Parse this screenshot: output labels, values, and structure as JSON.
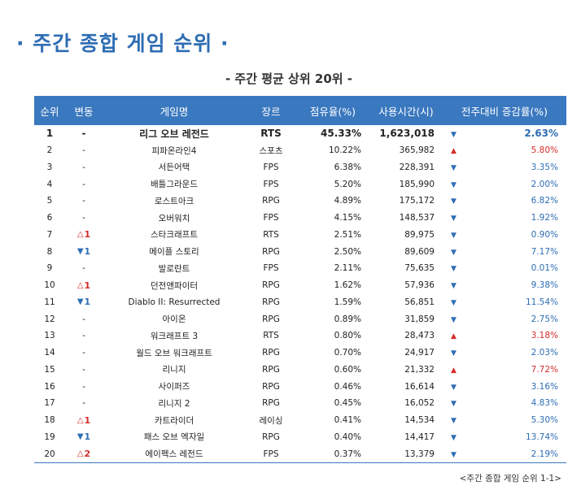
{
  "title": "· 주간 종합 게임 순위 ·",
  "subtitle": "- 주간 평균 상위 20위 -",
  "headers": [
    "순위",
    "변동",
    "게임명",
    "장르",
    "점유율(%)",
    "사용시간(시)",
    "전주대비 증감률(%)"
  ],
  "footnote": "<주간 종합 게임 순위 1-1>",
  "rows": [
    {
      "rank": "1",
      "move": "-",
      "move_dir": "none",
      "name": "리그 오브 레전드",
      "genre": "RTS",
      "share": "45.33%",
      "hours": "1,623,018",
      "trend": "down",
      "change": "2.63%"
    },
    {
      "rank": "2",
      "move": "-",
      "move_dir": "none",
      "name": "피파온라인4",
      "genre": "스포츠",
      "share": "10.22%",
      "hours": "365,982",
      "trend": "up",
      "change": "5.80%"
    },
    {
      "rank": "3",
      "move": "-",
      "move_dir": "none",
      "name": "서든어택",
      "genre": "FPS",
      "share": "6.38%",
      "hours": "228,391",
      "trend": "down",
      "change": "3.35%"
    },
    {
      "rank": "4",
      "move": "-",
      "move_dir": "none",
      "name": "배틀그라운드",
      "genre": "FPS",
      "share": "5.20%",
      "hours": "185,990",
      "trend": "down",
      "change": "2.00%"
    },
    {
      "rank": "5",
      "move": "-",
      "move_dir": "none",
      "name": "로스트아크",
      "genre": "RPG",
      "share": "4.89%",
      "hours": "175,172",
      "trend": "down",
      "change": "6.82%"
    },
    {
      "rank": "6",
      "move": "-",
      "move_dir": "none",
      "name": "오버워치",
      "genre": "FPS",
      "share": "4.15%",
      "hours": "148,537",
      "trend": "down",
      "change": "1.92%"
    },
    {
      "rank": "7",
      "move": "1",
      "move_dir": "up",
      "name": "스타크래프트",
      "genre": "RTS",
      "share": "2.51%",
      "hours": "89,975",
      "trend": "down",
      "change": "0.90%"
    },
    {
      "rank": "8",
      "move": "1",
      "move_dir": "down",
      "name": "메이플 스토리",
      "genre": "RPG",
      "share": "2.50%",
      "hours": "89,609",
      "trend": "down",
      "change": "7.17%"
    },
    {
      "rank": "9",
      "move": "-",
      "move_dir": "none",
      "name": "발로란트",
      "genre": "FPS",
      "share": "2.11%",
      "hours": "75,635",
      "trend": "down",
      "change": "0.01%"
    },
    {
      "rank": "10",
      "move": "1",
      "move_dir": "up",
      "name": "던전앤파이터",
      "genre": "RPG",
      "share": "1.62%",
      "hours": "57,936",
      "trend": "down",
      "change": "9.38%"
    },
    {
      "rank": "11",
      "move": "1",
      "move_dir": "down",
      "name": "Diablo II: Resurrected",
      "genre": "RPG",
      "share": "1.59%",
      "hours": "56,851",
      "trend": "down",
      "change": "11.54%"
    },
    {
      "rank": "12",
      "move": "-",
      "move_dir": "none",
      "name": "아이온",
      "genre": "RPG",
      "share": "0.89%",
      "hours": "31,859",
      "trend": "down",
      "change": "2.75%"
    },
    {
      "rank": "13",
      "move": "-",
      "move_dir": "none",
      "name": "워크래프트 3",
      "genre": "RTS",
      "share": "0.80%",
      "hours": "28,473",
      "trend": "up",
      "change": "3.18%"
    },
    {
      "rank": "14",
      "move": "-",
      "move_dir": "none",
      "name": "월드 오브 워크래프트",
      "genre": "RPG",
      "share": "0.70%",
      "hours": "24,917",
      "trend": "down",
      "change": "2.03%"
    },
    {
      "rank": "15",
      "move": "-",
      "move_dir": "none",
      "name": "리니지",
      "genre": "RPG",
      "share": "0.60%",
      "hours": "21,332",
      "trend": "up",
      "change": "7.72%"
    },
    {
      "rank": "16",
      "move": "-",
      "move_dir": "none",
      "name": "사이퍼즈",
      "genre": "RPG",
      "share": "0.46%",
      "hours": "16,614",
      "trend": "down",
      "change": "3.16%"
    },
    {
      "rank": "17",
      "move": "-",
      "move_dir": "none",
      "name": "리니지 2",
      "genre": "RPG",
      "share": "0.45%",
      "hours": "16,052",
      "trend": "down",
      "change": "4.83%"
    },
    {
      "rank": "18",
      "move": "1",
      "move_dir": "up",
      "name": "카트라이더",
      "genre": "레이싱",
      "share": "0.41%",
      "hours": "14,534",
      "trend": "down",
      "change": "5.30%"
    },
    {
      "rank": "19",
      "move": "1",
      "move_dir": "down",
      "name": "패스 오브 엑자일",
      "genre": "RPG",
      "share": "0.40%",
      "hours": "14,417",
      "trend": "down",
      "change": "13.74%"
    },
    {
      "rank": "20",
      "move": "2",
      "move_dir": "up",
      "name": "에이펙스 레전드",
      "genre": "FPS",
      "share": "0.37%",
      "hours": "13,379",
      "trend": "down",
      "change": "2.19%"
    }
  ]
}
